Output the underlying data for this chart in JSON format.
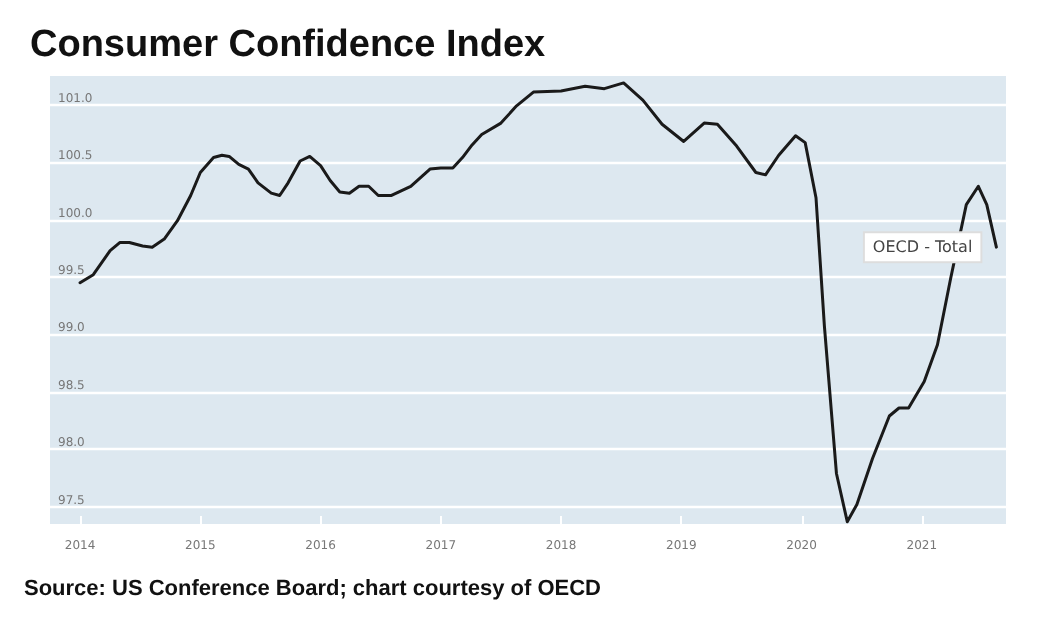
{
  "chart_data": {
    "type": "line",
    "title": "Consumer Confidence Index",
    "annotations": [
      "Source: US Conference Board; chart courtesy of OECD"
    ],
    "x": [
      2014.0,
      2014.11,
      2014.25,
      2014.33,
      2014.41,
      2014.52,
      2014.6,
      2014.7,
      2014.81,
      2014.92,
      2015.0,
      2015.11,
      2015.18,
      2015.24,
      2015.32,
      2015.4,
      2015.48,
      2015.59,
      2015.66,
      2015.73,
      2015.83,
      2015.91,
      2016.0,
      2016.08,
      2016.16,
      2016.24,
      2016.32,
      2016.4,
      2016.48,
      2016.59,
      2016.75,
      2016.91,
      2017.0,
      2017.1,
      2017.18,
      2017.26,
      2017.34,
      2017.5,
      2017.63,
      2017.77,
      2018.0,
      2018.2,
      2018.36,
      2018.52,
      2018.68,
      2018.84,
      2019.02,
      2019.19,
      2019.3,
      2019.46,
      2019.62,
      2019.7,
      2019.81,
      2019.95,
      2020.03,
      2020.12,
      2020.19,
      2020.29,
      2020.38,
      2020.46,
      2020.59,
      2020.73,
      2020.81,
      2020.89,
      2021.02,
      2021.13,
      2021.24,
      2021.37,
      2021.47,
      2021.54,
      2021.62
    ],
    "series": [
      {
        "name": "OECD - Total",
        "color": "#1a1a1a",
        "values": [
          99.45,
          99.52,
          99.73,
          99.8,
          99.8,
          99.77,
          99.76,
          99.83,
          99.99,
          100.21,
          100.41,
          100.54,
          100.56,
          100.55,
          100.48,
          100.44,
          100.32,
          100.23,
          100.21,
          100.32,
          100.51,
          100.55,
          100.47,
          100.34,
          100.24,
          100.23,
          100.29,
          100.29,
          100.21,
          100.21,
          100.29,
          100.44,
          100.45,
          100.45,
          100.54,
          100.65,
          100.74,
          100.84,
          100.99,
          101.11,
          101.12,
          101.16,
          101.14,
          101.19,
          101.04,
          100.83,
          100.68,
          100.84,
          100.83,
          100.64,
          100.41,
          100.39,
          100.56,
          100.73,
          100.67,
          100.19,
          99.07,
          97.79,
          97.37,
          97.52,
          97.92,
          98.29,
          98.36,
          98.36,
          98.59,
          98.91,
          99.49,
          100.13,
          100.29,
          100.13,
          99.76
        ]
      }
    ],
    "xlim": [
      2013.75,
      2021.7
    ],
    "xticks": [
      2014,
      2015,
      2016,
      2017,
      2018,
      2019,
      2020,
      2021
    ],
    "ylim": [
      97.35,
      101.25
    ],
    "yticks": [
      {
        "value": 97.5,
        "label": "97.5"
      },
      {
        "value": 98,
        "label": "98.0"
      },
      {
        "value": 98.5,
        "label": "98.5"
      },
      {
        "value": 99,
        "label": "99.0"
      },
      {
        "value": 99.5,
        "label": "99.5"
      },
      {
        "value": 100,
        "label": "100.0"
      },
      {
        "value": 100.5,
        "label": "100.5"
      },
      {
        "value": 101,
        "label": "101.0"
      }
    ],
    "grid": "y",
    "legend": false,
    "marker": "none",
    "line_style": "solid"
  }
}
